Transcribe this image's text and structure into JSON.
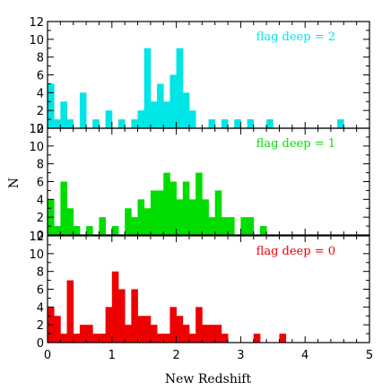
{
  "chart_data": {
    "type": "bar",
    "xlabel": "New Redshift",
    "ylabel": "N",
    "xlim": [
      0,
      5
    ],
    "ylim": [
      0,
      12
    ],
    "bin_width": 0.1,
    "x_ticks": [
      "0",
      "1",
      "2",
      "3",
      "4",
      "5"
    ],
    "y_ticks": [
      "0",
      "2",
      "4",
      "6",
      "8",
      "10",
      "12"
    ],
    "panels": [
      {
        "label": "flag deep = 2",
        "color": "#00e5e5",
        "bin_starts": [
          0.0,
          0.1,
          0.2,
          0.3,
          0.5,
          0.7,
          0.9,
          1.1,
          1.3,
          1.4,
          1.5,
          1.6,
          1.7,
          1.8,
          1.9,
          2.0,
          2.1,
          2.2,
          2.5,
          2.7,
          2.9,
          3.1,
          3.4,
          4.5
        ],
        "values": [
          5,
          1,
          3,
          1,
          4,
          1,
          2,
          1,
          1,
          2,
          9,
          3,
          5,
          3,
          6,
          9,
          4,
          2,
          1,
          1,
          1,
          1,
          1,
          1
        ]
      },
      {
        "label": "flag deep = 1",
        "color": "#00dd00",
        "bin_starts": [
          0.0,
          0.1,
          0.2,
          0.3,
          0.4,
          0.6,
          0.8,
          1.0,
          1.2,
          1.3,
          1.4,
          1.5,
          1.6,
          1.7,
          1.8,
          1.9,
          2.0,
          2.1,
          2.2,
          2.3,
          2.4,
          2.5,
          2.6,
          2.7,
          2.8,
          3.0,
          3.1,
          3.3
        ],
        "values": [
          4,
          1,
          6,
          3,
          1,
          1,
          2,
          1,
          3,
          2,
          4,
          3,
          5,
          5,
          7,
          6,
          4,
          6,
          4,
          7,
          4,
          2,
          5,
          2,
          2,
          2,
          2,
          1
        ]
      },
      {
        "label": "flag deep = 0",
        "color": "#ee0000",
        "bin_starts": [
          0.0,
          0.1,
          0.2,
          0.3,
          0.4,
          0.5,
          0.6,
          0.7,
          0.8,
          0.9,
          1.0,
          1.1,
          1.2,
          1.3,
          1.4,
          1.5,
          1.6,
          1.7,
          1.8,
          1.9,
          2.0,
          2.1,
          2.2,
          2.3,
          2.4,
          2.5,
          2.6,
          2.7,
          3.2,
          3.6
        ],
        "values": [
          4,
          3,
          1,
          7,
          1,
          2,
          2,
          1,
          1,
          4,
          8,
          6,
          2,
          6,
          3,
          3,
          2,
          1,
          1,
          4,
          3,
          2,
          1,
          4,
          2,
          2,
          2,
          1,
          1,
          1
        ]
      }
    ]
  }
}
